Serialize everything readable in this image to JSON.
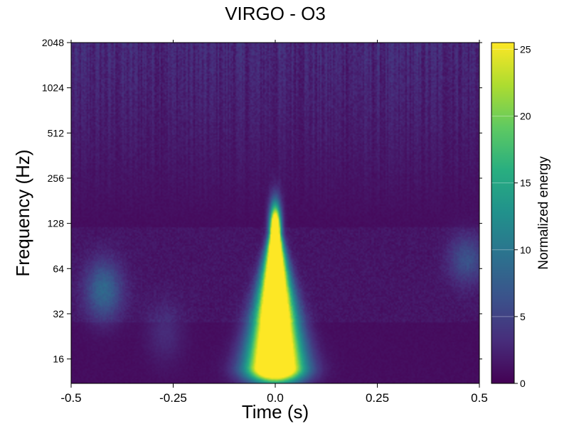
{
  "chart_data": {
    "type": "heatmap",
    "title": "VIRGO - O3",
    "xlabel": "Time (s)",
    "ylabel": "Frequency (Hz)",
    "xlim": [
      -0.5,
      0.5
    ],
    "ylim": [
      11,
      2048
    ],
    "yscale": "log2",
    "x_ticks": [
      "-0.5",
      "-0.25",
      "0.0",
      "0.25",
      "0.5"
    ],
    "x_tick_values": [
      -0.5,
      -0.25,
      0.0,
      0.25,
      0.5
    ],
    "y_ticks": [
      "16",
      "32",
      "64",
      "128",
      "256",
      "512",
      "1024",
      "2048"
    ],
    "y_tick_values": [
      16,
      32,
      64,
      128,
      256,
      512,
      1024,
      2048
    ],
    "colorbar": {
      "label": "Normalized energy",
      "colormap": "viridis",
      "range": [
        0,
        25.5
      ],
      "ticks": [
        "0",
        "5",
        "10",
        "15",
        "20",
        "25"
      ],
      "tick_values": [
        0,
        5,
        10,
        15,
        20,
        25
      ]
    },
    "features": [
      {
        "t_center": 0.0,
        "f_low": 14,
        "f_high": 110,
        "peak_energy": 25.5,
        "width_s_low": 0.1,
        "width_s_high": 0.02
      },
      {
        "t_center": -0.42,
        "f_low": 35,
        "f_high": 60,
        "peak_energy": 13
      },
      {
        "t_center": 0.47,
        "f_low": 60,
        "f_high": 90,
        "peak_energy": 9
      },
      {
        "t_center": -0.27,
        "f_low": 18,
        "f_high": 32,
        "peak_energy": 4
      }
    ]
  }
}
